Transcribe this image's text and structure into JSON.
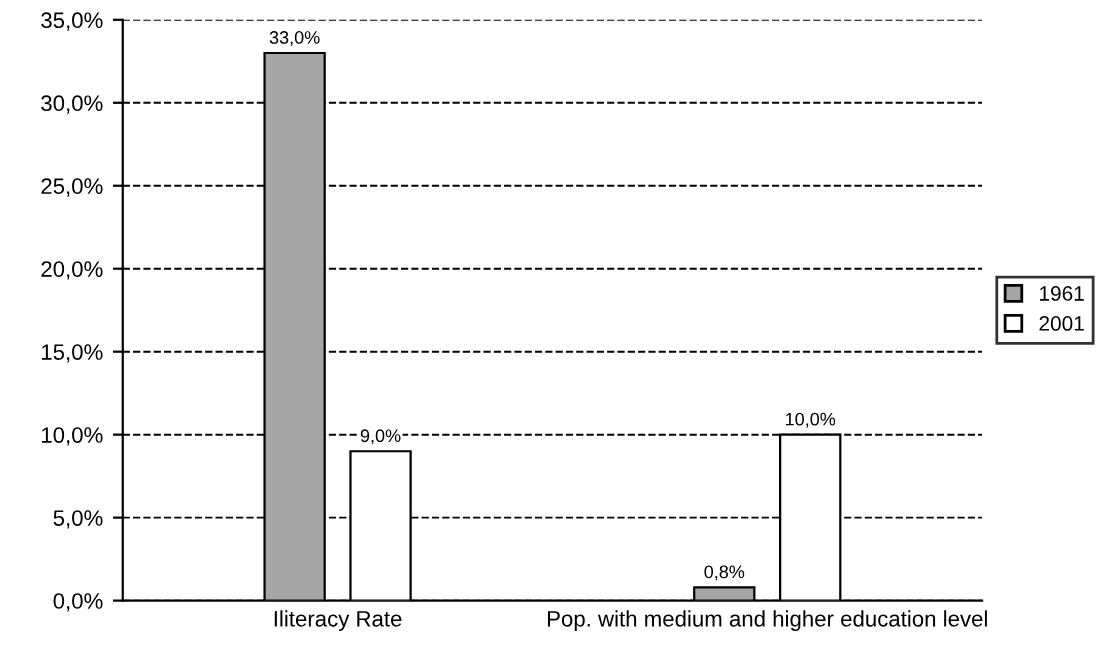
{
  "chart_data": {
    "type": "bar",
    "categories": [
      "Iliteracy Rate",
      "Pop. with medium and higher education level"
    ],
    "series": [
      {
        "name": "1961",
        "color": "#a6a6a6",
        "values": [
          33.0,
          0.8
        ],
        "value_labels": [
          "33,0%",
          "0,8%"
        ]
      },
      {
        "name": "2001",
        "color": "#ffffff",
        "values": [
          9.0,
          10.0
        ],
        "value_labels": [
          "9,0%",
          "10,0%"
        ]
      }
    ],
    "ylim": [
      0,
      35
    ],
    "yticks": [
      {
        "value": 0,
        "label": "0,0%"
      },
      {
        "value": 5,
        "label": "5,0%"
      },
      {
        "value": 10,
        "label": "10,0%"
      },
      {
        "value": 15,
        "label": "15,0%"
      },
      {
        "value": 20,
        "label": "20,0%"
      },
      {
        "value": 25,
        "label": "25,0%"
      },
      {
        "value": 30,
        "label": "30,0%"
      },
      {
        "value": 35,
        "label": "35,0%"
      }
    ],
    "grid": "y",
    "legend": "right"
  }
}
